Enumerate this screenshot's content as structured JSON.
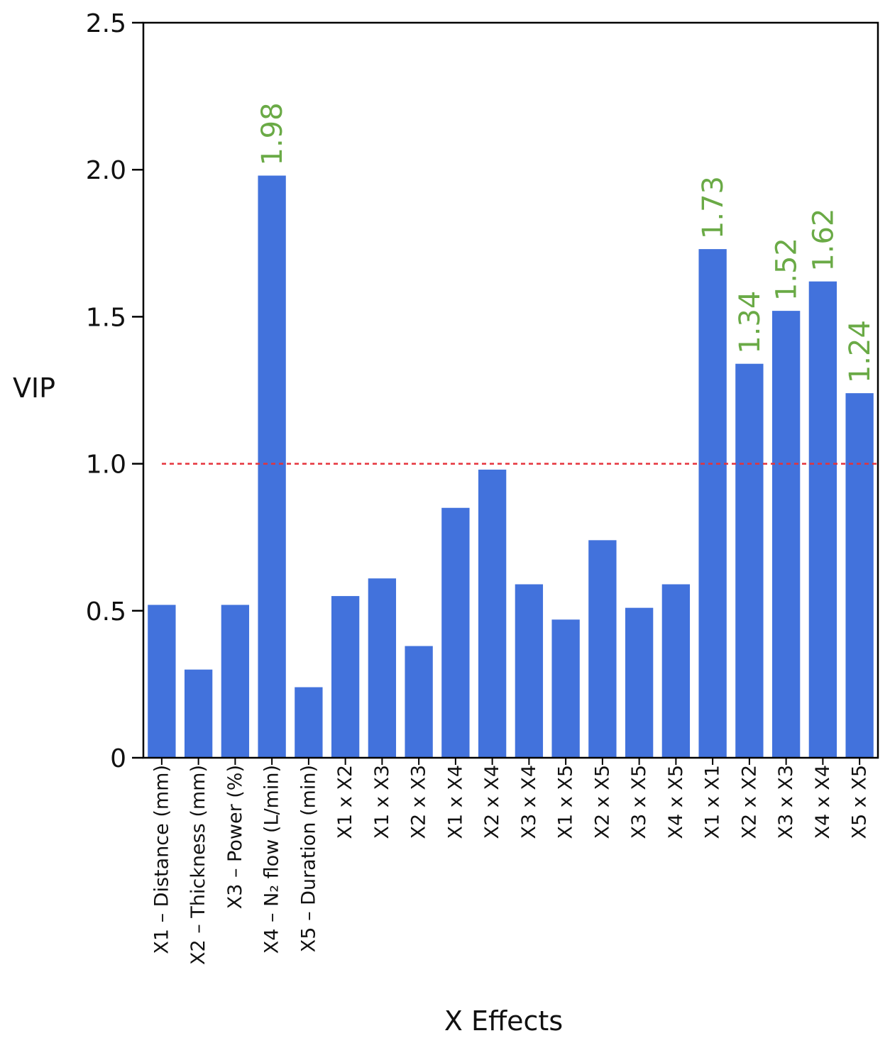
{
  "chart_data": {
    "type": "bar",
    "title": "",
    "xlabel": "X Effects",
    "ylabel": "VIP",
    "ylim": [
      0,
      2.5
    ],
    "yticks": [
      "0",
      "0.5",
      "1.0",
      "1.5",
      "2.0",
      "2.5"
    ],
    "categories": [
      "X1 – Distance (mm)",
      "X2 – Thickness (mm)",
      "X3 – Power (%)",
      "X4 – N₂ flow (L/min)",
      "X5 – Duration (min)",
      "X1 x X2",
      "X1 x X3",
      "X2 x X3",
      "X1 x X4",
      "X2 x X4",
      "X3 x X4",
      "X1 x X5",
      "X2 x X5",
      "X3 x X5",
      "X4 x X5",
      "X1 x X1",
      "X2 x X2",
      "X3 x X3",
      "X4 x X4",
      "X5 x X5"
    ],
    "values": [
      0.52,
      0.3,
      0.52,
      1.98,
      0.24,
      0.55,
      0.61,
      0.38,
      0.85,
      0.98,
      0.59,
      0.47,
      0.74,
      0.51,
      0.59,
      1.73,
      1.34,
      1.52,
      1.62,
      1.24
    ],
    "data_labels": [
      "",
      "",
      "",
      "1.98",
      "",
      "",
      "",
      "",
      "",
      "",
      "",
      "",
      "",
      "",
      "",
      "1.73",
      "1.34",
      "1.52",
      "1.62",
      "1.24"
    ],
    "threshold": 1.0,
    "colors": {
      "bar": "#4272dc",
      "data_label": "#6aaa46",
      "threshold_line": "#e5323a",
      "axis": "#000000"
    },
    "grid": false
  }
}
